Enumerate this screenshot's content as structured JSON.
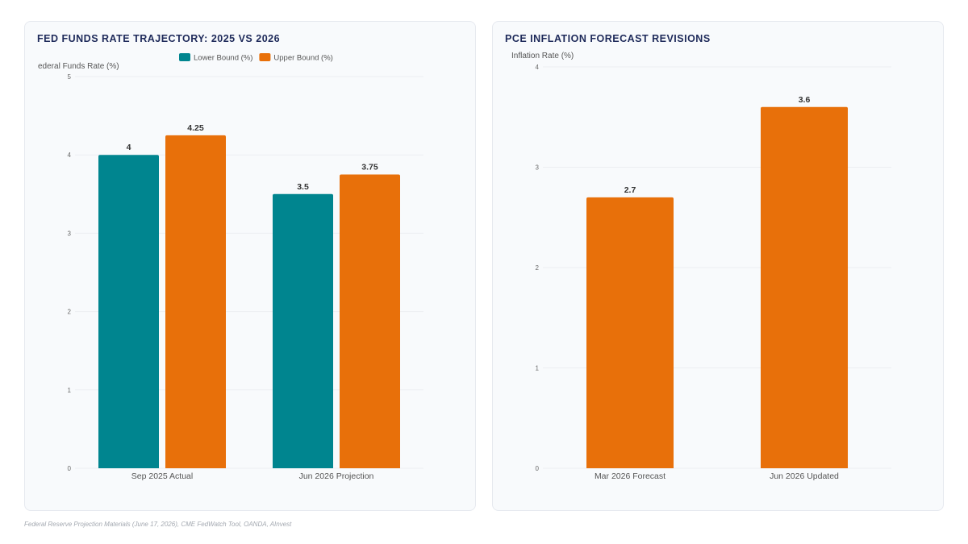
{
  "colors": {
    "lower": "#00858f",
    "upper": "#e8700a",
    "inflation": "#e8700a"
  },
  "source_note": "Federal Reserve Projection Materials (June 17, 2026), CME FedWatch Tool, OANDA, AInvest",
  "chart_data": [
    {
      "type": "bar",
      "title": "FED FUNDS RATE TRAJECTORY: 2025 VS 2026",
      "ylabel": "ederal Funds Rate (%)",
      "xlabel": "",
      "ylim": [
        0,
        5
      ],
      "yticks": [
        "0",
        "1",
        "2",
        "3",
        "4",
        "5"
      ],
      "grid": true,
      "legend_position": "top",
      "categories": [
        "Sep 2025 Actual",
        "Jun 2026 Projection"
      ],
      "series": [
        {
          "name": "Lower Bound (%)",
          "values": [
            4,
            3.5
          ],
          "value_labels": [
            "4",
            "3.5"
          ]
        },
        {
          "name": "Upper Bound (%)",
          "values": [
            4.25,
            3.75
          ],
          "value_labels": [
            "4.25",
            "3.75"
          ]
        }
      ]
    },
    {
      "type": "bar",
      "title": "PCE INFLATION FORECAST REVISIONS",
      "ylabel": "Inflation Rate (%)",
      "xlabel": "",
      "ylim": [
        0,
        4
      ],
      "yticks": [
        "0",
        "1",
        "2",
        "3",
        "4"
      ],
      "grid": true,
      "legend_position": "none",
      "categories": [
        "Mar 2026 Forecast",
        "Jun 2026 Updated"
      ],
      "series": [
        {
          "values": [
            2.7,
            3.6
          ],
          "value_labels": [
            "2.7",
            "3.6"
          ]
        }
      ]
    }
  ]
}
